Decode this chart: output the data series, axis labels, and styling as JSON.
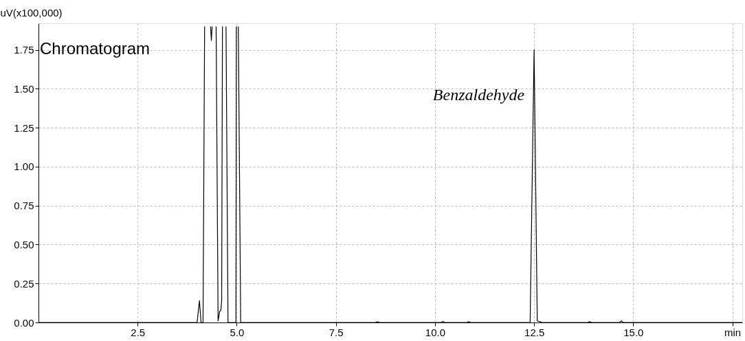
{
  "chart_data": {
    "type": "line",
    "title": "Chromatogram",
    "ylabel": "uV(x100,000)",
    "x": [
      0,
      4.0,
      4.06,
      4.1,
      4.15,
      4.19,
      4.26,
      4.34,
      4.36,
      4.38,
      4.43,
      4.48,
      4.53,
      4.57,
      4.6,
      4.62,
      4.64,
      4.68,
      4.73,
      4.78,
      4.98,
      4.99,
      5.01,
      5.04,
      5.1,
      8.5,
      8.55,
      8.6,
      10.15,
      10.2,
      10.25,
      10.8,
      10.85,
      10.9,
      12.4,
      12.5,
      12.58,
      12.65,
      12.7,
      13.85,
      13.9,
      13.95,
      14.65,
      14.7,
      14.75,
      17.75
    ],
    "series": [
      {
        "color": "#000000",
        "values": [
          0,
          0,
          0.14,
          0,
          0,
          1.9,
          null,
          1.9,
          1.81,
          1.9,
          null,
          1.9,
          0.01,
          0.07,
          0.08,
          0.14,
          1.9,
          null,
          1.9,
          0,
          0,
          1.9,
          null,
          1.9,
          0,
          0,
          0.005,
          0,
          0,
          0.007,
          0,
          0,
          0.005,
          0,
          0,
          1.75,
          0.01,
          0.005,
          0,
          0,
          0.005,
          0,
          0,
          0.01,
          0,
          0
        ]
      }
    ],
    "annotations": [
      {
        "text": "Benzaldehyde",
        "x": 12.5,
        "y": 1.75
      }
    ],
    "xlim": [
      0,
      17.75
    ],
    "ylim": [
      0,
      1.92
    ],
    "xticks": [
      2.5,
      {
        "value": 5,
        "label": "5.0"
      },
      7.5,
      {
        "value": 10,
        "label": "10.0"
      },
      12.5,
      {
        "value": 15,
        "label": "15.0"
      },
      {
        "value": 17.5,
        "label": "min"
      }
    ],
    "yticks": [
      {
        "value": 0,
        "label": "0.00"
      },
      0.25,
      {
        "value": 0.5,
        "label": "0.50"
      },
      0.75,
      {
        "value": 1,
        "label": "1.00"
      },
      1.25,
      {
        "value": 1.5,
        "label": "1.50"
      },
      1.75
    ],
    "grid": true,
    "marker": "none",
    "line_style": "solid"
  }
}
